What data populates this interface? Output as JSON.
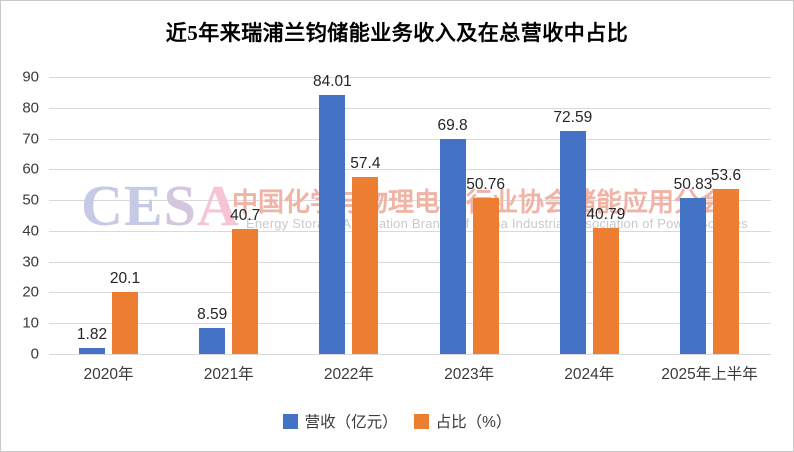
{
  "title": "近5年来瑞浦兰钧储能业务收入及在总营收中占比",
  "chart_data": {
    "type": "bar",
    "categories": [
      "2020年",
      "2021年",
      "2022年",
      "2023年",
      "2024年",
      "2025年上半年"
    ],
    "series": [
      {
        "name": "营收（亿元）",
        "color": "#4472C4",
        "values": [
          1.82,
          8.59,
          84.01,
          69.8,
          72.59,
          50.83
        ]
      },
      {
        "name": "占比（%）",
        "color": "#ED7D31",
        "values": [
          20.1,
          40.7,
          57.4,
          50.76,
          40.79,
          53.6
        ]
      }
    ],
    "ylim": [
      0,
      90
    ],
    "yticks": [
      "0",
      "10",
      "20",
      "30",
      "40",
      "50",
      "60",
      "70",
      "80",
      "90"
    ],
    "grid": true,
    "gridline_color": "#d9d9d9",
    "legend_position": "bottom"
  },
  "watermark": {
    "cesa_letters": [
      "C",
      "E",
      "S",
      "A"
    ],
    "cesa_colors": [
      "#c6cae6",
      "#c6cae6",
      "#d5c6e0",
      "#f5c5d5"
    ],
    "line_cn": "中国化学与物理电源行业协会储能应用分会",
    "line_en": "Energy Storage Application Branch of China Industrial Association of Power Sources",
    "cn_color": "#f1b3a6",
    "en_color": "#c9c9c9"
  }
}
